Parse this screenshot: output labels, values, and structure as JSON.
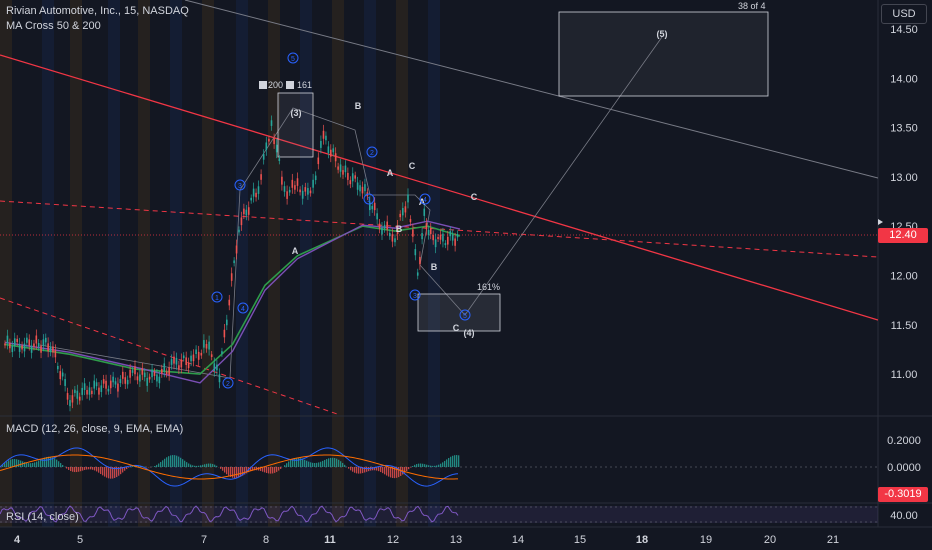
{
  "header": {
    "symbol_title": "Rivian Automotive, Inc., 15, NASDAQ",
    "indicator_ma": "MA Cross 50 & 200"
  },
  "toolbar": {
    "currency_label": "USD"
  },
  "page_counter": "38 of 4",
  "panes": {
    "macd_label": "MACD (12, 26, close, 9, EMA, EMA)",
    "rsi_label": "RSI (14, close)"
  },
  "price_axis": {
    "ticks": [
      "14.50",
      "14.00",
      "13.50",
      "13.00",
      "12.50",
      "12.00",
      "11.50",
      "11.00"
    ],
    "current_price": "12.40",
    "current_price_color": "#f23645"
  },
  "macd_axis": {
    "ticks": [
      "0.2000",
      "0.0000"
    ],
    "macd_value": "-0.3019",
    "macd_value_color": "#f23645"
  },
  "rsi_axis": {
    "ticks": [
      "40.00"
    ]
  },
  "time_axis": {
    "ticks": [
      "4",
      "5",
      "7",
      "8",
      "11",
      "12",
      "13",
      "14",
      "15",
      "18",
      "19",
      "20",
      "21"
    ]
  },
  "annotations": {
    "wave_labels": [
      "B",
      "(3)",
      "A",
      "C",
      "C",
      "A",
      "B",
      "B",
      "A",
      "C",
      "(4)",
      "(5)"
    ],
    "circled_numbers": [
      "1",
      "2",
      "3",
      "4",
      "5",
      "1",
      "2",
      "3",
      "4",
      "5",
      "1",
      "3"
    ],
    "pct_label": "161%",
    "fib_label_a": "200",
    "fib_label_b": "161"
  },
  "colors": {
    "background": "#131722",
    "red_line": "#f23645",
    "ma50": "#2e9c4a",
    "ma200": "#7b4fb5",
    "wave_circle": "#2962ff"
  },
  "chart_data": {
    "type": "line",
    "title": "Rivian Automotive, Inc., 15, NASDAQ",
    "xlabel": "",
    "ylabel": "",
    "x_ticks": [
      "4",
      "5",
      "7",
      "8",
      "11",
      "12",
      "13",
      "14",
      "15",
      "18",
      "19",
      "20",
      "21"
    ],
    "ylim": [
      10.6,
      14.7
    ],
    "grid": false,
    "series": [
      {
        "name": "price",
        "x": [
          0,
          0.3,
          0.7,
          1.0,
          1.3,
          1.7,
          2.0,
          2.3,
          2.6,
          2.9,
          3.1,
          3.3,
          3.6,
          3.9,
          4.1,
          4.3,
          4.5,
          4.7,
          4.9,
          5.2,
          5.5,
          5.8,
          6.0,
          6.2,
          6.35,
          6.45,
          6.55,
          6.7,
          7.0
        ],
        "values": [
          11.3,
          11.3,
          11.3,
          10.75,
          10.85,
          10.9,
          11.0,
          10.95,
          11.1,
          11.15,
          11.3,
          11.0,
          12.5,
          12.9,
          13.55,
          12.85,
          12.9,
          12.8,
          13.4,
          13.05,
          12.9,
          12.5,
          12.4,
          12.8,
          12.0,
          12.6,
          12.4,
          12.35,
          12.4
        ]
      },
      {
        "name": "",
        "x": [
          0,
          1.0,
          2.0,
          3.0,
          3.5,
          4.0,
          4.5,
          5.0,
          5.5,
          6.0,
          6.5,
          7.0
        ],
        "values": [
          11.3,
          11.2,
          11.05,
          11.0,
          11.3,
          11.9,
          12.2,
          12.35,
          12.5,
          12.45,
          12.5,
          12.4
        ]
      }
    ]
  }
}
